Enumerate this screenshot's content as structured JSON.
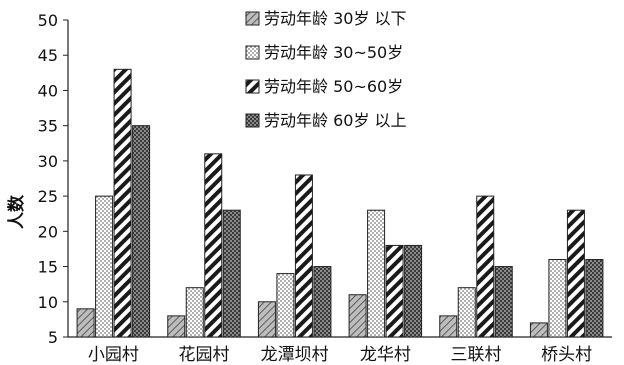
{
  "chart_data": {
    "type": "bar",
    "ylabel": "人数",
    "xlabel": "",
    "title": "",
    "ylim": [
      5,
      50
    ],
    "yticks": [
      5,
      10,
      15,
      20,
      25,
      30,
      35,
      40,
      45,
      50
    ],
    "categories": [
      "小园村",
      "花园村",
      "龙潭坝村",
      "龙华村",
      "三联村",
      "桥头村"
    ],
    "series": [
      {
        "name": "劳动年龄 30岁 以下",
        "pattern": "diagonal-light",
        "values": [
          9,
          8,
          10,
          11,
          8,
          7
        ]
      },
      {
        "name": "劳动年龄 30~50岁",
        "pattern": "dots",
        "values": [
          25,
          12,
          14,
          23,
          12,
          16
        ]
      },
      {
        "name": "劳动年龄 50~60岁",
        "pattern": "diagonal-bold",
        "values": [
          43,
          31,
          28,
          18,
          25,
          23
        ]
      },
      {
        "name": "劳动年龄 60岁 以上",
        "pattern": "crosshatch",
        "values": [
          35,
          23,
          15,
          18,
          15,
          16
        ]
      }
    ],
    "legend_position": "top-right",
    "grid": false
  }
}
